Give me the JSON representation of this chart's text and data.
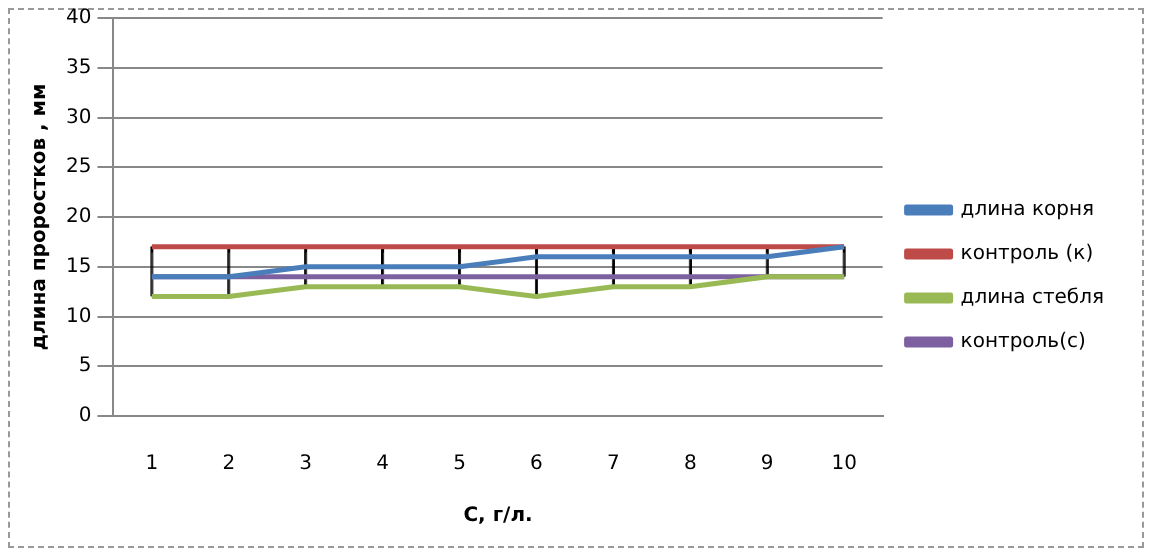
{
  "chart_data": {
    "type": "line",
    "xlabel": "C, г/л.",
    "ylabel": "длина проростков , мм",
    "categories": [
      "1",
      "2",
      "3",
      "4",
      "5",
      "6",
      "7",
      "8",
      "9",
      "10"
    ],
    "series": [
      {
        "name": "длина корня",
        "color": "#4a7ebb",
        "values": [
          14,
          14,
          15,
          15,
          15,
          16,
          16,
          16,
          16,
          17
        ]
      },
      {
        "name": "контроль (к)",
        "color": "#be4b48",
        "values": [
          17,
          17,
          17,
          17,
          17,
          17,
          17,
          17,
          17,
          17
        ]
      },
      {
        "name": "длина стебля",
        "color": "#98b954",
        "values": [
          12,
          12,
          13,
          13,
          13,
          12,
          13,
          13,
          14,
          14
        ]
      },
      {
        "name": "контроль(с)",
        "color": "#7d60a0",
        "values": [
          14,
          14,
          14,
          14,
          14,
          14,
          14,
          14,
          14,
          14
        ]
      },
      {
        "type": "bar",
        "color": "#000000",
        "base": [
          12,
          12,
          13,
          13,
          13,
          12,
          13,
          13,
          14,
          14
        ],
        "values": [
          5,
          5,
          4,
          4,
          4,
          5,
          4,
          4,
          3,
          3
        ]
      }
    ],
    "ylim": [
      0,
      40
    ],
    "yticks": [
      0,
      5,
      10,
      15,
      20,
      25,
      30,
      35,
      40
    ],
    "grid": "y",
    "legend": "right",
    "marker": "none",
    "line_style": "solid"
  }
}
